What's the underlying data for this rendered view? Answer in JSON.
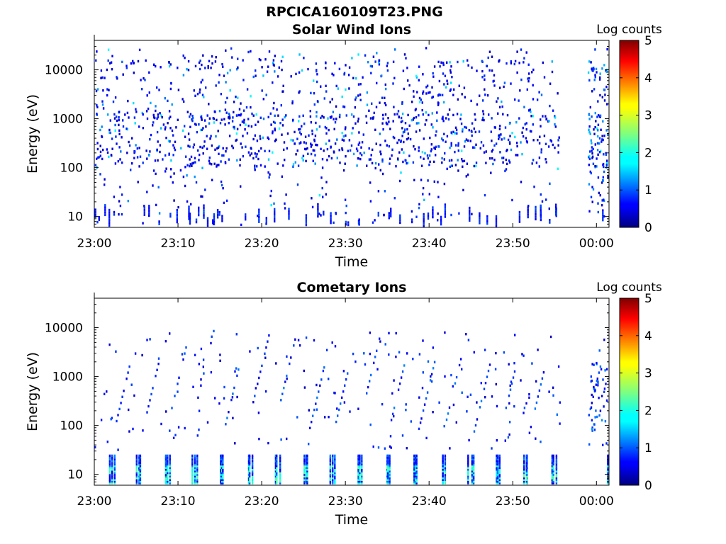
{
  "figure": {
    "title": "RPCICA160109T23.PNG"
  },
  "chart_data": [
    {
      "type": "heatmap",
      "title": "Solar Wind Ions",
      "xlabel": "Time",
      "ylabel": "Energy (eV)",
      "x_ticks": [
        "23:00",
        "23:10",
        "23:20",
        "23:30",
        "23:40",
        "23:50",
        "00:00"
      ],
      "y_ticks": [
        "10",
        "100",
        "1000",
        "10000"
      ],
      "y_scale": "log",
      "x_range_minutes": [
        0,
        61.5
      ],
      "y_range_eV": [
        6,
        40000
      ],
      "colorbar": {
        "label": "Log counts",
        "ticks": [
          "0",
          "1",
          "2",
          "3",
          "4",
          "5"
        ],
        "range": [
          0,
          5
        ],
        "colormap": "jet"
      },
      "data_gap_minutes": [
        55.6,
        58.9
      ],
      "pattern": "sparse scattered counts (mostly log counts 0-1.5) from ~6 eV to ~30000 eV, densest between 100 and 1000 eV, strong low-energy streaks near 10 eV"
    },
    {
      "type": "heatmap",
      "title": "Cometary Ions",
      "xlabel": "Time",
      "ylabel": "Energy (eV)",
      "x_ticks": [
        "23:00",
        "23:10",
        "23:20",
        "23:30",
        "23:40",
        "23:50",
        "00:00"
      ],
      "y_ticks": [
        "10",
        "100",
        "1000",
        "10000"
      ],
      "y_scale": "log",
      "x_range_minutes": [
        0,
        61.5
      ],
      "y_range_eV": [
        6,
        40000
      ],
      "colorbar": {
        "label": "Log counts",
        "ticks": [
          "0",
          "1",
          "2",
          "3",
          "4",
          "5"
        ],
        "range": [
          0,
          5
        ],
        "colormap": "jet"
      },
      "data_gap_minutes": [
        55.6,
        58.9
      ],
      "pattern": "periodic low-energy bursts (log counts up to ~2.3) below 30 eV roughly every 3.3 minutes, with sparse diagonal dispersed tracks rising from ~100 eV to ~5000 eV"
    }
  ]
}
